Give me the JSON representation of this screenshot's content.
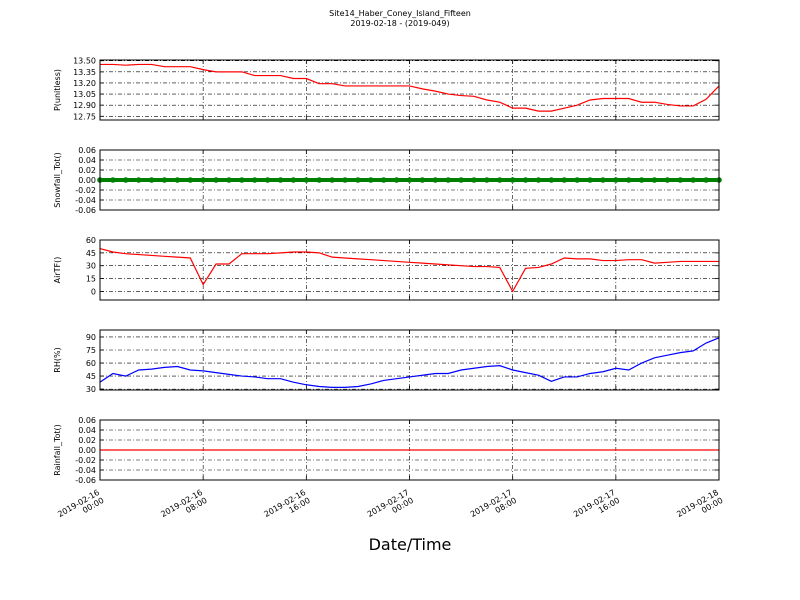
{
  "chart_data": [
    {
      "type": "line",
      "title": "Site14_Haber_Coney_Island_Fifteen",
      "subtitle": "2019-02-18 - (2019-049)",
      "ylabel": "P(unitless)",
      "x": [
        "2019-02-16 00:00",
        "2019-02-16 01:00",
        "2019-02-16 02:00",
        "2019-02-16 03:00",
        "2019-02-16 04:00",
        "2019-02-16 05:00",
        "2019-02-16 06:00",
        "2019-02-16 07:00",
        "2019-02-16 08:00",
        "2019-02-16 09:00",
        "2019-02-16 10:00",
        "2019-02-16 11:00",
        "2019-02-16 12:00",
        "2019-02-16 13:00",
        "2019-02-16 14:00",
        "2019-02-16 15:00",
        "2019-02-16 16:00",
        "2019-02-16 17:00",
        "2019-02-16 18:00",
        "2019-02-16 19:00",
        "2019-02-16 20:00",
        "2019-02-16 21:00",
        "2019-02-16 22:00",
        "2019-02-16 23:00",
        "2019-02-17 00:00",
        "2019-02-17 01:00",
        "2019-02-17 02:00",
        "2019-02-17 03:00",
        "2019-02-17 04:00",
        "2019-02-17 05:00",
        "2019-02-17 06:00",
        "2019-02-17 07:00",
        "2019-02-17 08:00",
        "2019-02-17 09:00",
        "2019-02-17 10:00",
        "2019-02-17 11:00",
        "2019-02-17 12:00",
        "2019-02-17 13:00",
        "2019-02-17 14:00",
        "2019-02-17 15:00",
        "2019-02-17 16:00",
        "2019-02-17 17:00",
        "2019-02-17 18:00",
        "2019-02-17 19:00",
        "2019-02-17 20:00",
        "2019-02-17 21:00",
        "2019-02-17 22:00",
        "2019-02-17 23:00",
        "2019-02-18 00:00"
      ],
      "series": [
        {
          "color": "#ff0000",
          "values": [
            13.45,
            13.45,
            13.44,
            13.45,
            13.45,
            13.42,
            13.42,
            13.42,
            13.38,
            13.35,
            13.35,
            13.35,
            13.3,
            13.3,
            13.3,
            13.26,
            13.26,
            13.19,
            13.19,
            13.16,
            13.16,
            13.16,
            13.16,
            13.16,
            13.16,
            13.12,
            13.09,
            13.05,
            13.03,
            13.02,
            12.97,
            12.94,
            12.86,
            12.86,
            12.82,
            12.82,
            12.86,
            12.9,
            12.97,
            12.99,
            12.99,
            12.99,
            12.94,
            12.94,
            12.91,
            12.89,
            12.89,
            12.98,
            13.16
          ]
        }
      ],
      "xlim": [
        "2019-02-16 00:00",
        "2019-02-18 00:00"
      ],
      "xticks": [
        "2019-02-16 00:00",
        "2019-02-16 08:00",
        "2019-02-16 16:00",
        "2019-02-17 00:00",
        "2019-02-17 08:00",
        "2019-02-17 16:00",
        "2019-02-18 00:00"
      ],
      "ylim": [
        12.7,
        13.51
      ],
      "yticks": [
        {
          "value": 12.75,
          "label": "12.75"
        },
        {
          "value": 12.9,
          "label": "12.90"
        },
        {
          "value": 13.05,
          "label": "13.05"
        },
        {
          "value": 13.2,
          "label": "13.20"
        },
        {
          "value": 13.35,
          "label": "13.35"
        },
        {
          "value": 13.5,
          "label": "13.50"
        }
      ],
      "grid": true
    },
    {
      "type": "scatter",
      "ylabel": "Snowfall_Tot()",
      "x": [
        "2019-02-16 00:00",
        "2019-02-16 01:00",
        "2019-02-16 02:00",
        "2019-02-16 03:00",
        "2019-02-16 04:00",
        "2019-02-16 05:00",
        "2019-02-16 06:00",
        "2019-02-16 07:00",
        "2019-02-16 08:00",
        "2019-02-16 09:00",
        "2019-02-16 10:00",
        "2019-02-16 11:00",
        "2019-02-16 12:00",
        "2019-02-16 13:00",
        "2019-02-16 14:00",
        "2019-02-16 15:00",
        "2019-02-16 16:00",
        "2019-02-16 17:00",
        "2019-02-16 18:00",
        "2019-02-16 19:00",
        "2019-02-16 20:00",
        "2019-02-16 21:00",
        "2019-02-16 22:00",
        "2019-02-16 23:00",
        "2019-02-17 00:00",
        "2019-02-17 01:00",
        "2019-02-17 02:00",
        "2019-02-17 03:00",
        "2019-02-17 04:00",
        "2019-02-17 05:00",
        "2019-02-17 06:00",
        "2019-02-17 07:00",
        "2019-02-17 08:00",
        "2019-02-17 09:00",
        "2019-02-17 10:00",
        "2019-02-17 11:00",
        "2019-02-17 12:00",
        "2019-02-17 13:00",
        "2019-02-17 14:00",
        "2019-02-17 15:00",
        "2019-02-17 16:00",
        "2019-02-17 17:00",
        "2019-02-17 18:00",
        "2019-02-17 19:00",
        "2019-02-17 20:00",
        "2019-02-17 21:00",
        "2019-02-17 22:00",
        "2019-02-17 23:00",
        "2019-02-18 00:00"
      ],
      "series": [
        {
          "color": "#008000",
          "values": [
            0,
            0,
            0,
            0,
            0,
            0,
            0,
            0,
            0,
            0,
            0,
            0,
            0,
            0,
            0,
            0,
            0,
            0,
            0,
            0,
            0,
            0,
            0,
            0,
            0,
            0,
            0,
            0,
            0,
            0,
            0,
            0,
            0,
            0,
            0,
            0,
            0,
            0,
            0,
            0,
            0,
            0,
            0,
            0,
            0,
            0,
            0,
            0,
            0
          ]
        }
      ],
      "xlim": [
        "2019-02-16 00:00",
        "2019-02-18 00:00"
      ],
      "xticks": [
        "2019-02-16 00:00",
        "2019-02-16 08:00",
        "2019-02-16 16:00",
        "2019-02-17 00:00",
        "2019-02-17 08:00",
        "2019-02-17 16:00",
        "2019-02-18 00:00"
      ],
      "ylim": [
        -0.06,
        0.06
      ],
      "yticks": [
        -0.06,
        -0.04,
        -0.02,
        {
          "value": 0,
          "label": "0.00"
        },
        0.02,
        0.04,
        0.06
      ],
      "grid": true
    },
    {
      "type": "line",
      "ylabel": "AirTF()",
      "x": [
        "2019-02-16 00:00",
        "2019-02-16 01:00",
        "2019-02-16 02:00",
        "2019-02-16 03:00",
        "2019-02-16 04:00",
        "2019-02-16 05:00",
        "2019-02-16 06:00",
        "2019-02-16 07:00",
        "2019-02-16 08:00",
        "2019-02-16 09:00",
        "2019-02-16 10:00",
        "2019-02-16 11:00",
        "2019-02-16 12:00",
        "2019-02-16 13:00",
        "2019-02-16 14:00",
        "2019-02-16 15:00",
        "2019-02-16 16:00",
        "2019-02-16 17:00",
        "2019-02-16 18:00",
        "2019-02-16 19:00",
        "2019-02-16 20:00",
        "2019-02-16 21:00",
        "2019-02-16 22:00",
        "2019-02-16 23:00",
        "2019-02-17 00:00",
        "2019-02-17 01:00",
        "2019-02-17 02:00",
        "2019-02-17 03:00",
        "2019-02-17 04:00",
        "2019-02-17 05:00",
        "2019-02-17 06:00",
        "2019-02-17 07:00",
        "2019-02-17 08:00",
        "2019-02-17 09:00",
        "2019-02-17 10:00",
        "2019-02-17 11:00",
        "2019-02-17 12:00",
        "2019-02-17 13:00",
        "2019-02-17 14:00",
        "2019-02-17 15:00",
        "2019-02-17 16:00",
        "2019-02-17 17:00",
        "2019-02-17 18:00",
        "2019-02-17 19:00",
        "2019-02-17 20:00",
        "2019-02-17 21:00",
        "2019-02-17 22:00",
        "2019-02-17 23:00",
        "2019-02-18 00:00"
      ],
      "series": [
        {
          "color": "#ff0000",
          "values": [
            50,
            46,
            44,
            43,
            42,
            41,
            40,
            39,
            8,
            32,
            32,
            44,
            44,
            44,
            45,
            46,
            46,
            45,
            40,
            39,
            38,
            37,
            36,
            35,
            34,
            33,
            32,
            31,
            30,
            29,
            29,
            28,
            0,
            27,
            28,
            32,
            39,
            38,
            38,
            36,
            36,
            37,
            37,
            33,
            34,
            35,
            35,
            35,
            35
          ]
        }
      ],
      "xlim": [
        "2019-02-16 00:00",
        "2019-02-18 00:00"
      ],
      "xticks": [
        "2019-02-16 00:00",
        "2019-02-16 08:00",
        "2019-02-16 16:00",
        "2019-02-17 00:00",
        "2019-02-17 08:00",
        "2019-02-17 16:00",
        "2019-02-18 00:00"
      ],
      "ylim": [
        -10,
        60
      ],
      "yticks": [
        0,
        15,
        30,
        45,
        60
      ],
      "grid": true
    },
    {
      "type": "line",
      "ylabel": "RH(%)",
      "x": [
        "2019-02-16 00:00",
        "2019-02-16 01:00",
        "2019-02-16 02:00",
        "2019-02-16 03:00",
        "2019-02-16 04:00",
        "2019-02-16 05:00",
        "2019-02-16 06:00",
        "2019-02-16 07:00",
        "2019-02-16 08:00",
        "2019-02-16 09:00",
        "2019-02-16 10:00",
        "2019-02-16 11:00",
        "2019-02-16 12:00",
        "2019-02-16 13:00",
        "2019-02-16 14:00",
        "2019-02-16 15:00",
        "2019-02-16 16:00",
        "2019-02-16 17:00",
        "2019-02-16 18:00",
        "2019-02-16 19:00",
        "2019-02-16 20:00",
        "2019-02-16 21:00",
        "2019-02-16 22:00",
        "2019-02-16 23:00",
        "2019-02-17 00:00",
        "2019-02-17 01:00",
        "2019-02-17 02:00",
        "2019-02-17 03:00",
        "2019-02-17 04:00",
        "2019-02-17 05:00",
        "2019-02-17 06:00",
        "2019-02-17 07:00",
        "2019-02-17 08:00",
        "2019-02-17 09:00",
        "2019-02-17 10:00",
        "2019-02-17 11:00",
        "2019-02-17 12:00",
        "2019-02-17 13:00",
        "2019-02-17 14:00",
        "2019-02-17 15:00",
        "2019-02-17 16:00",
        "2019-02-17 17:00",
        "2019-02-17 18:00",
        "2019-02-17 19:00",
        "2019-02-17 20:00",
        "2019-02-17 21:00",
        "2019-02-17 22:00",
        "2019-02-17 23:00",
        "2019-02-18 00:00"
      ],
      "series": [
        {
          "color": "#0000ff",
          "values": [
            38,
            48,
            45,
            52,
            53,
            55,
            56,
            52,
            51,
            49,
            47,
            45,
            44,
            42,
            42,
            38,
            35,
            33,
            32,
            32,
            33,
            36,
            40,
            42,
            44,
            46,
            48,
            48,
            52,
            54,
            56,
            57,
            52,
            49,
            46,
            39,
            44,
            44,
            48,
            50,
            54,
            52,
            60,
            66,
            69,
            72,
            74,
            83,
            89
          ]
        }
      ],
      "xlim": [
        "2019-02-16 00:00",
        "2019-02-18 00:00"
      ],
      "xticks": [
        "2019-02-16 00:00",
        "2019-02-16 08:00",
        "2019-02-16 16:00",
        "2019-02-17 00:00",
        "2019-02-17 08:00",
        "2019-02-17 16:00",
        "2019-02-18 00:00"
      ],
      "ylim": [
        29,
        98
      ],
      "yticks": [
        30,
        45,
        60,
        75,
        90
      ],
      "grid": true
    },
    {
      "type": "line",
      "ylabel": "Rainfall_Tot()",
      "xlabel": "Date/Time",
      "x": [
        "2019-02-16 00:00",
        "2019-02-16 01:00",
        "2019-02-16 02:00",
        "2019-02-16 03:00",
        "2019-02-16 04:00",
        "2019-02-16 05:00",
        "2019-02-16 06:00",
        "2019-02-16 07:00",
        "2019-02-16 08:00",
        "2019-02-16 09:00",
        "2019-02-16 10:00",
        "2019-02-16 11:00",
        "2019-02-16 12:00",
        "2019-02-16 13:00",
        "2019-02-16 14:00",
        "2019-02-16 15:00",
        "2019-02-16 16:00",
        "2019-02-16 17:00",
        "2019-02-16 18:00",
        "2019-02-16 19:00",
        "2019-02-16 20:00",
        "2019-02-16 21:00",
        "2019-02-16 22:00",
        "2019-02-16 23:00",
        "2019-02-17 00:00",
        "2019-02-17 01:00",
        "2019-02-17 02:00",
        "2019-02-17 03:00",
        "2019-02-17 04:00",
        "2019-02-17 05:00",
        "2019-02-17 06:00",
        "2019-02-17 07:00",
        "2019-02-17 08:00",
        "2019-02-17 09:00",
        "2019-02-17 10:00",
        "2019-02-17 11:00",
        "2019-02-17 12:00",
        "2019-02-17 13:00",
        "2019-02-17 14:00",
        "2019-02-17 15:00",
        "2019-02-17 16:00",
        "2019-02-17 17:00",
        "2019-02-17 18:00",
        "2019-02-17 19:00",
        "2019-02-17 20:00",
        "2019-02-17 21:00",
        "2019-02-17 22:00",
        "2019-02-17 23:00",
        "2019-02-18 00:00"
      ],
      "series": [
        {
          "color": "#ff0000",
          "values": [
            0,
            0,
            0,
            0,
            0,
            0,
            0,
            0,
            0,
            0,
            0,
            0,
            0,
            0,
            0,
            0,
            0,
            0,
            0,
            0,
            0,
            0,
            0,
            0,
            0,
            0,
            0,
            0,
            0,
            0,
            0,
            0,
            0,
            0,
            0,
            0,
            0,
            0,
            0,
            0,
            0,
            0,
            0,
            0,
            0,
            0,
            0,
            0,
            0
          ]
        }
      ],
      "xlim": [
        "2019-02-16 00:00",
        "2019-02-18 00:00"
      ],
      "xticks": [
        "2019-02-16 00:00",
        "2019-02-16 08:00",
        "2019-02-16 16:00",
        "2019-02-17 00:00",
        "2019-02-17 08:00",
        "2019-02-17 16:00",
        "2019-02-18 00:00"
      ],
      "ylim": [
        -0.06,
        0.06
      ],
      "yticks": [
        -0.06,
        -0.04,
        -0.02,
        {
          "value": 0,
          "label": "0.00"
        },
        0.02,
        0.04,
        0.06
      ],
      "grid": true
    }
  ]
}
